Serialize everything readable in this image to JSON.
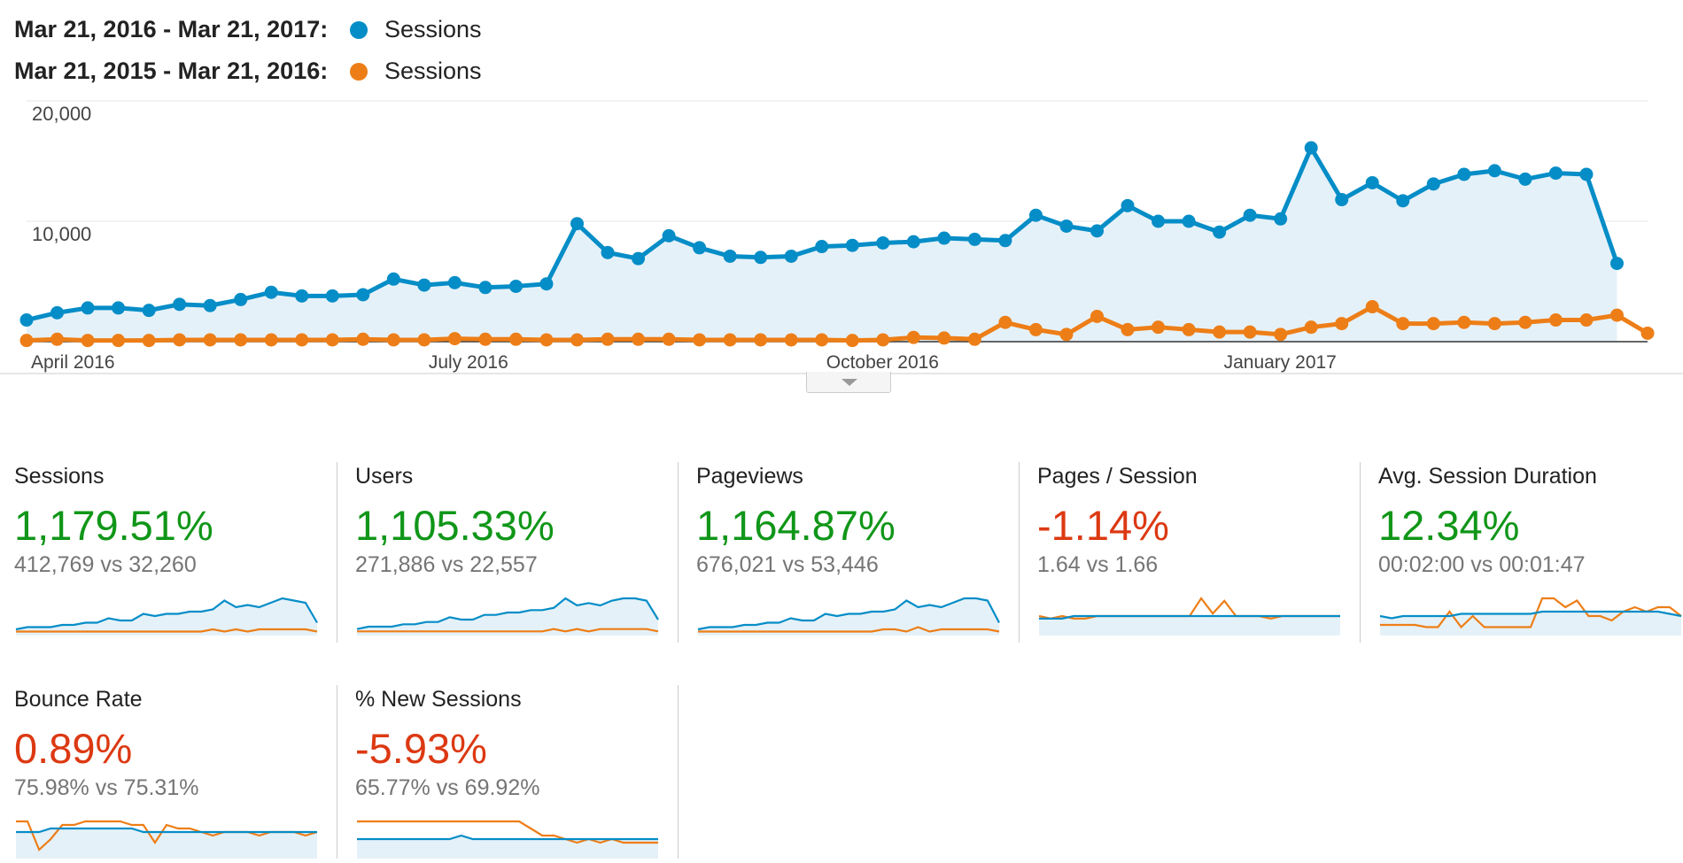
{
  "legend": [
    {
      "range": "Mar 21, 2016 - Mar 21, 2017:",
      "series": "Sessions",
      "color": "#058dc7"
    },
    {
      "range": "Mar 21, 2015 - Mar 21, 2016:",
      "series": "Sessions",
      "color": "#ed7e17"
    }
  ],
  "colors": {
    "current": "#058dc7",
    "previous": "#ed7e17",
    "fill": "#e5f1f8",
    "positive": "#109618",
    "negative": "#dc3912"
  },
  "chart_data": {
    "type": "line",
    "ylim": [
      0,
      20000
    ],
    "yticks": [
      "20,000",
      "10,000"
    ],
    "ytick_values": [
      20000,
      10000
    ],
    "xtick_labels": [
      "April 2016",
      "July 2016",
      "October 2016",
      "January 2017"
    ],
    "xtick_weeks": [
      1.5,
      14.5,
      27.5,
      40.5
    ],
    "grid": true,
    "series": [
      {
        "name": "Sessions",
        "period": "Mar 21, 2016 - Mar 21, 2017",
        "values": [
          1800,
          2400,
          2800,
          2800,
          2600,
          3100,
          3000,
          3500,
          4100,
          3800,
          3800,
          3900,
          5200,
          4700,
          4900,
          4500,
          4600,
          4800,
          9800,
          7400,
          6900,
          8800,
          7800,
          7100,
          7000,
          7100,
          7900,
          8000,
          8200,
          8300,
          8600,
          8500,
          8400,
          10500,
          9600,
          9200,
          11300,
          10000,
          10000,
          9100,
          10500,
          10200,
          16100,
          11800,
          13200,
          11700,
          13100,
          13900,
          14200,
          13500,
          14000,
          13900,
          6500
        ]
      },
      {
        "name": "Sessions",
        "period": "Mar 21, 2015 - Mar 21, 2016",
        "values": [
          100,
          200,
          100,
          100,
          100,
          150,
          150,
          150,
          150,
          150,
          150,
          200,
          150,
          150,
          250,
          200,
          200,
          150,
          150,
          200,
          200,
          200,
          150,
          150,
          150,
          150,
          150,
          100,
          150,
          350,
          300,
          200,
          1600,
          1000,
          600,
          2100,
          1000,
          1200,
          1000,
          800,
          800,
          600,
          1200,
          1500,
          2900,
          1500,
          1500,
          1600,
          1500,
          1600,
          1800,
          1800,
          2200,
          700
        ]
      }
    ]
  },
  "metrics": [
    {
      "name": "Sessions",
      "change": "1,179.51%",
      "trend": "positive",
      "compare": "412,769 vs 32,260",
      "spark_cur": [
        2,
        3,
        3,
        3,
        4,
        4,
        5,
        5,
        7,
        6,
        6,
        9,
        8,
        9,
        9,
        10,
        10,
        11,
        15,
        12,
        13,
        12,
        14,
        16,
        15,
        14,
        5
      ],
      "spark_prev": [
        1,
        1,
        1,
        1,
        1,
        1,
        1,
        1,
        1,
        1,
        1,
        1,
        1,
        1,
        1,
        1,
        1,
        2,
        1,
        2,
        1,
        2,
        2,
        2,
        2,
        2,
        1
      ]
    },
    {
      "name": "Users",
      "change": "1,105.33%",
      "trend": "positive",
      "compare": "271,886 vs 22,557",
      "spark_cur": [
        2,
        3,
        3,
        3,
        4,
        4,
        5,
        5,
        7,
        6,
        6,
        8,
        8,
        9,
        9,
        10,
        10,
        11,
        15,
        12,
        13,
        12,
        14,
        15,
        15,
        14,
        6
      ],
      "spark_prev": [
        1,
        1,
        1,
        1,
        1,
        1,
        1,
        1,
        1,
        1,
        1,
        1,
        1,
        1,
        1,
        1,
        1,
        2,
        1,
        2,
        1,
        2,
        2,
        2,
        2,
        2,
        1
      ]
    },
    {
      "name": "Pageviews",
      "change": "1,164.87%",
      "trend": "positive",
      "compare": "676,021 vs 53,446",
      "spark_cur": [
        2,
        3,
        3,
        3,
        4,
        4,
        5,
        5,
        7,
        6,
        6,
        9,
        8,
        9,
        9,
        10,
        10,
        11,
        15,
        12,
        13,
        12,
        14,
        16,
        16,
        15,
        5
      ],
      "spark_prev": [
        1,
        1,
        1,
        1,
        1,
        1,
        1,
        1,
        1,
        1,
        1,
        1,
        1,
        1,
        1,
        1,
        2,
        2,
        1,
        3,
        1,
        2,
        2,
        2,
        2,
        2,
        1
      ]
    },
    {
      "name": "Pages / Session",
      "change": "-1.14%",
      "trend": "negative",
      "compare": "1.64 vs 1.66",
      "spark_cur": [
        6,
        6,
        6,
        7,
        7,
        7,
        7,
        7,
        7,
        7,
        7,
        7,
        7,
        7,
        7,
        7,
        7,
        7,
        7,
        7,
        7,
        7,
        7,
        7,
        7,
        7,
        7
      ],
      "spark_prev": [
        7,
        6,
        7,
        6,
        6,
        7,
        7,
        7,
        7,
        7,
        7,
        7,
        7,
        7,
        14,
        8,
        13,
        7,
        7,
        7,
        6,
        7,
        7,
        7,
        7,
        7,
        7
      ]
    },
    {
      "name": "Avg. Session Duration",
      "change": "12.34%",
      "trend": "positive",
      "compare": "00:02:00 vs 00:01:47",
      "spark_cur": [
        8,
        7,
        8,
        8,
        8,
        8,
        8,
        9,
        9,
        9,
        9,
        9,
        9,
        9,
        10,
        10,
        10,
        10,
        10,
        10,
        10,
        10,
        10,
        10,
        10,
        9,
        8
      ],
      "spark_prev": [
        4,
        4,
        4,
        4,
        3,
        3,
        10,
        3,
        8,
        3,
        3,
        3,
        3,
        3,
        16,
        16,
        12,
        15,
        8,
        8,
        6,
        10,
        12,
        10,
        12,
        12,
        8
      ]
    },
    {
      "name": "Bounce Rate",
      "change": "0.89%",
      "trend": "negative",
      "compare": "75.98% vs 75.31%",
      "spark_cur": [
        7,
        7,
        7,
        8,
        8,
        8,
        8,
        8,
        8,
        8,
        8,
        7,
        7,
        7,
        7,
        7,
        7,
        7,
        7,
        7,
        7,
        7,
        7,
        7,
        7,
        7,
        7
      ],
      "spark_prev": [
        10,
        10,
        2,
        5,
        9,
        9,
        10,
        10,
        10,
        10,
        9,
        9,
        4,
        9,
        8,
        8,
        7,
        6,
        7,
        7,
        7,
        6,
        7,
        7,
        7,
        6,
        7
      ]
    },
    {
      "name": "% New Sessions",
      "change": "-5.93%",
      "trend": "negative",
      "compare": "65.77% vs 69.92%",
      "spark_cur": [
        5,
        5,
        5,
        5,
        5,
        5,
        5,
        5,
        5,
        6,
        5,
        5,
        5,
        5,
        5,
        5,
        5,
        5,
        5,
        5,
        5,
        5,
        5,
        5,
        5,
        5,
        5
      ],
      "spark_prev": [
        10,
        10,
        10,
        10,
        10,
        10,
        10,
        10,
        10,
        10,
        10,
        10,
        10,
        10,
        10,
        8,
        6,
        6,
        5,
        4,
        5,
        4,
        5,
        4,
        4,
        4,
        4
      ]
    }
  ]
}
